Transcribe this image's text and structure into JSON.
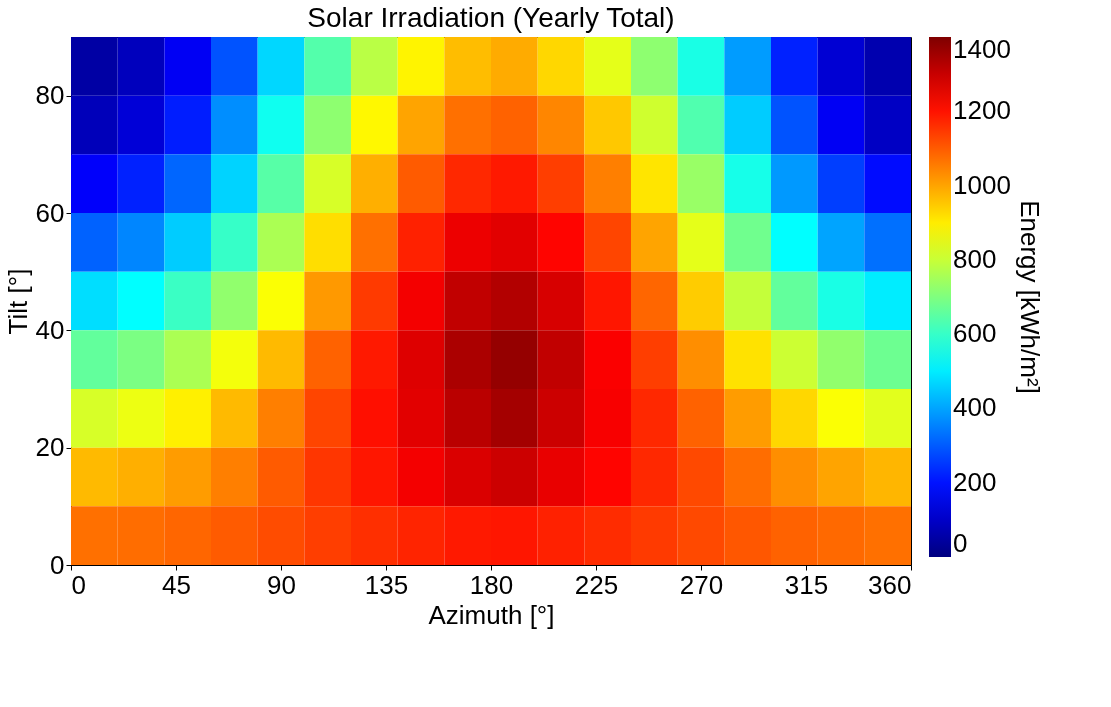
{
  "chart_data": {
    "type": "heatmap",
    "title": "Solar Irradiation (Yearly Total)",
    "xlabel": "Azimuth [°]",
    "ylabel": "Tilt [°]",
    "clabel": "Energy [kWh/m²]",
    "x": [
      10,
      30,
      50,
      70,
      90,
      110,
      130,
      150,
      170,
      190,
      210,
      230,
      250,
      270,
      290,
      310,
      330,
      350
    ],
    "y": [
      85,
      75,
      65,
      55,
      45,
      35,
      25,
      15,
      5
    ],
    "cells": [
      [
        50,
        85,
        160,
        290,
        470,
        640,
        780,
        890,
        965,
        990,
        930,
        840,
        720,
        560,
        390,
        220,
        115,
        65
      ],
      [
        80,
        120,
        215,
        370,
        545,
        720,
        885,
        1000,
        1070,
        1090,
        1040,
        950,
        810,
        635,
        455,
        290,
        160,
        95
      ],
      [
        170,
        220,
        315,
        465,
        645,
        820,
        985,
        1100,
        1170,
        1190,
        1140,
        1050,
        910,
        735,
        555,
        385,
        260,
        190
      ],
      [
        310,
        360,
        455,
        600,
        760,
        920,
        1070,
        1180,
        1250,
        1265,
        1220,
        1130,
        1000,
        840,
        680,
        525,
        400,
        330
      ],
      [
        480,
        525,
        605,
        725,
        870,
        1015,
        1145,
        1240,
        1310,
        1330,
        1280,
        1195,
        1085,
        945,
        795,
        660,
        560,
        500
      ],
      [
        660,
        695,
        760,
        860,
        970,
        1090,
        1190,
        1270,
        1340,
        1370,
        1310,
        1230,
        1140,
        1030,
        915,
        805,
        725,
        675
      ],
      [
        820,
        850,
        895,
        970,
        1050,
        1130,
        1205,
        1265,
        1320,
        1350,
        1295,
        1235,
        1170,
        1090,
        1010,
        930,
        870,
        835
      ],
      [
        970,
        985,
        1010,
        1050,
        1100,
        1150,
        1195,
        1240,
        1275,
        1295,
        1255,
        1220,
        1170,
        1125,
        1075,
        1030,
        1000,
        975
      ],
      [
        1070,
        1075,
        1085,
        1100,
        1120,
        1140,
        1160,
        1175,
        1190,
        1195,
        1180,
        1165,
        1145,
        1125,
        1105,
        1090,
        1080,
        1070
      ]
    ],
    "xlim": [
      0,
      360
    ],
    "xticks": [
      0,
      45,
      90,
      135,
      180,
      225,
      270,
      315,
      360
    ],
    "ylim": [
      0,
      90
    ],
    "yticks": [
      0,
      20,
      40,
      60,
      80
    ],
    "clim": [
      0,
      1400
    ],
    "cticks": [
      0,
      200,
      400,
      600,
      800,
      1000,
      1200,
      1400
    ]
  }
}
